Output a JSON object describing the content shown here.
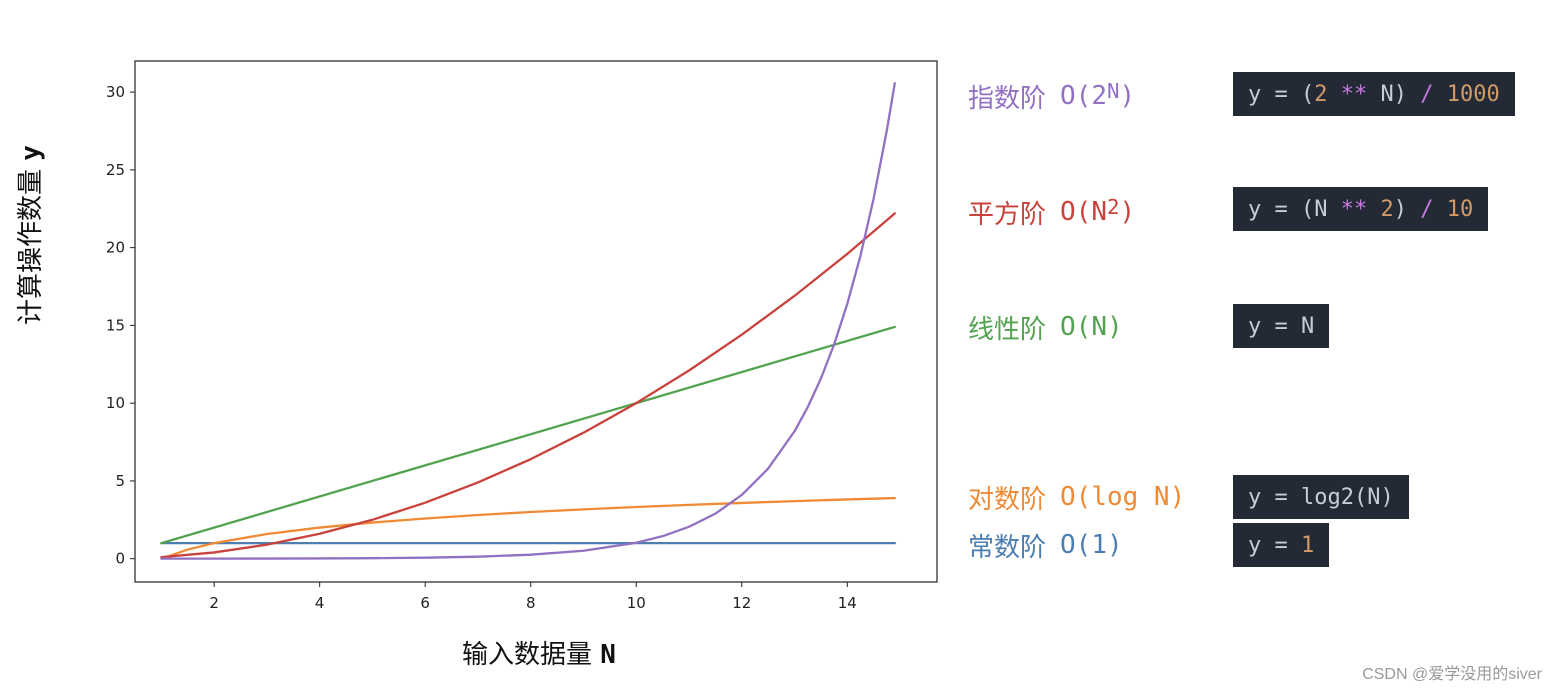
{
  "colors": {
    "constant": "#4c7eb2",
    "log": "#f08a35",
    "linear": "#52a350",
    "quadratic": "#c9423c",
    "exponential": "#9270c2",
    "code_bg": "#232a35"
  },
  "legend": {
    "exponential": {
      "cn": "指数阶",
      "big_o": "O(2",
      "sup": "N",
      "close": ")"
    },
    "quadratic": {
      "cn": "平方阶",
      "big_o": "O(N",
      "sup": "2",
      "close": ")"
    },
    "linear": {
      "cn": "线性阶",
      "big_o": "O(N)"
    },
    "log": {
      "cn": "对数阶",
      "big_o": "O(log N)"
    },
    "constant": {
      "cn": "常数阶",
      "big_o": "O(1)"
    }
  },
  "code": {
    "exponential": {
      "a": "y = (",
      "b": "2",
      "c": " ",
      "d": "**",
      "e": " N) ",
      "f": "/",
      "g": " ",
      "h": "1000"
    },
    "quadratic": {
      "a": "y = (N ",
      "b": "**",
      "c": " ",
      "d": "2",
      "e": ") ",
      "f": "/",
      "g": " ",
      "h": "10"
    },
    "linear": {
      "text": "y = N"
    },
    "log": {
      "text": "y = log2(N)"
    },
    "constant": {
      "a": "y = ",
      "b": "1"
    }
  },
  "chart_data": {
    "type": "line",
    "xlabel": "输入数据量",
    "xlabel_var": "N",
    "ylabel": "计算操作数量",
    "ylabel_var": "y",
    "xlim": [
      0.5,
      15.7
    ],
    "ylim": [
      -1.5,
      32
    ],
    "xticks": [
      2,
      4,
      6,
      8,
      10,
      12,
      14
    ],
    "yticks": [
      0,
      5,
      10,
      15,
      20,
      25,
      30
    ],
    "x_range": [
      1,
      14.9
    ],
    "series": [
      {
        "key": "constant",
        "formula": "y = 1",
        "color": "#4c7eb2",
        "x": [
          1,
          14.9
        ],
        "y": [
          1,
          1
        ]
      },
      {
        "key": "log",
        "formula": "y = log2(N)",
        "color": "#f08a35",
        "x": [
          1,
          1.5,
          2,
          3,
          4,
          5,
          6,
          7,
          8,
          9,
          10,
          11,
          12,
          13,
          14,
          14.9
        ],
        "y": [
          0,
          0.585,
          1,
          1.585,
          2,
          2.322,
          2.585,
          2.807,
          3,
          3.17,
          3.322,
          3.459,
          3.585,
          3.7,
          3.807,
          3.897
        ]
      },
      {
        "key": "linear",
        "formula": "y = N",
        "color": "#52a350",
        "x": [
          1,
          14.9
        ],
        "y": [
          1,
          14.9
        ]
      },
      {
        "key": "quadratic",
        "formula": "y = (N ** 2) / 10",
        "color": "#c9423c",
        "x": [
          1,
          2,
          3,
          4,
          5,
          6,
          7,
          8,
          9,
          10,
          11,
          12,
          13,
          14,
          14.9
        ],
        "y": [
          0.1,
          0.4,
          0.9,
          1.6,
          2.5,
          3.6,
          4.9,
          6.4,
          8.1,
          10,
          12.1,
          14.4,
          16.9,
          19.6,
          22.2
        ]
      },
      {
        "key": "exponential",
        "formula": "y = (2 ** N) / 1000",
        "color": "#9270c2",
        "x": [
          1,
          2,
          3,
          4,
          5,
          6,
          7,
          8,
          9,
          10,
          10.5,
          11,
          11.5,
          12,
          12.5,
          13,
          13.25,
          13.5,
          13.75,
          14,
          14.25,
          14.5,
          14.75,
          14.9
        ],
        "y": [
          0.002,
          0.004,
          0.008,
          0.016,
          0.032,
          0.064,
          0.128,
          0.256,
          0.512,
          1.024,
          1.448,
          2.048,
          2.896,
          4.096,
          5.793,
          8.192,
          9.742,
          11.585,
          13.777,
          16.384,
          19.484,
          23.17,
          27.554,
          30.574
        ]
      }
    ]
  },
  "watermark": "CSDN @爱学没用的siver"
}
